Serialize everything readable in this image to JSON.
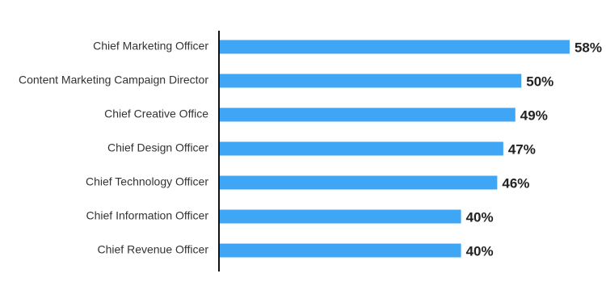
{
  "chart_data": {
    "type": "bar",
    "orientation": "horizontal",
    "categories": [
      "Chief Marketing Officer",
      "Content Marketing Campaign Director",
      "Chief Creative Office",
      "Chief Design Officer",
      "Chief Technology Officer",
      "Chief Information Officer",
      "Chief Revenue Officer"
    ],
    "values": [
      58,
      50,
      49,
      47,
      46,
      40,
      40
    ],
    "value_labels": [
      "58%",
      "50%",
      "49%",
      "47%",
      "46%",
      "40%",
      "40%"
    ],
    "color": "#3ea6f5"
  }
}
